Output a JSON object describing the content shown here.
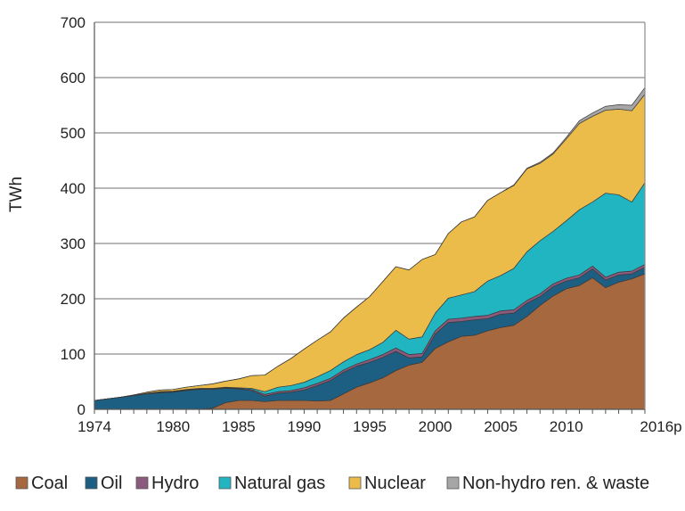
{
  "chart_data": {
    "type": "area",
    "stacked": true,
    "title": "",
    "xlabel": "",
    "ylabel": "TWh",
    "ylim": [
      0,
      700
    ],
    "yticks": [
      0,
      100,
      200,
      300,
      400,
      500,
      600,
      700
    ],
    "x_tick_labels": [
      "1974",
      "1980",
      "1985",
      "1990",
      "1995",
      "2000",
      "2005",
      "2010",
      "2016p"
    ],
    "grid": "horizontal",
    "legend_position": "bottom",
    "x": [
      1974,
      1975,
      1976,
      1977,
      1978,
      1979,
      1980,
      1981,
      1982,
      1983,
      1984,
      1985,
      1986,
      1987,
      1988,
      1989,
      1990,
      1991,
      1992,
      1993,
      1994,
      1995,
      1996,
      1997,
      1998,
      1999,
      2000,
      2001,
      2002,
      2003,
      2004,
      2005,
      2006,
      2007,
      2008,
      2009,
      2010,
      2011,
      2012,
      2013,
      2014,
      2015,
      2016
    ],
    "series": [
      {
        "name": "Coal",
        "color": "#a5683f",
        "values": [
          0,
          0,
          0,
          0,
          0,
          0,
          0,
          0,
          0,
          2,
          12,
          16,
          16,
          14,
          16,
          16,
          16,
          15,
          16,
          28,
          40,
          48,
          57,
          70,
          80,
          85,
          110,
          122,
          132,
          134,
          142,
          148,
          152,
          168,
          188,
          205,
          218,
          224,
          238,
          220,
          230,
          236,
          245
        ]
      },
      {
        "name": "Oil",
        "color": "#1d5f82",
        "values": [
          16,
          19,
          22,
          25,
          28,
          30,
          31,
          34,
          36,
          34,
          26,
          21,
          18,
          10,
          13,
          15,
          19,
          28,
          36,
          39,
          38,
          37,
          37,
          35,
          13,
          10,
          26,
          35,
          27,
          28,
          22,
          24,
          22,
          24,
          16,
          17,
          14,
          14,
          16,
          14,
          13,
          9,
          12
        ]
      },
      {
        "name": "Hydro",
        "color": "#8c5a7c",
        "values": [
          0,
          0,
          0,
          0,
          1,
          1,
          1,
          1,
          1,
          1,
          1,
          1,
          2,
          3,
          3,
          3,
          4,
          4,
          4,
          4,
          4,
          5,
          5,
          6,
          6,
          6,
          6,
          6,
          6,
          6,
          6,
          6,
          6,
          5,
          5,
          5,
          5,
          5,
          5,
          5,
          5,
          5,
          5
        ]
      },
      {
        "name": "Natural gas",
        "color": "#21b4c1",
        "values": [
          0,
          0,
          0,
          0,
          0,
          1,
          1,
          1,
          1,
          1,
          1,
          1,
          2,
          5,
          8,
          9,
          10,
          12,
          14,
          15,
          17,
          18,
          22,
          32,
          28,
          30,
          32,
          38,
          42,
          45,
          62,
          64,
          75,
          88,
          96,
          95,
          104,
          118,
          116,
          152,
          140,
          125,
          148
        ]
      },
      {
        "name": "Nuclear",
        "color": "#ecbc4a",
        "values": [
          0,
          0,
          0,
          1,
          2,
          3,
          3,
          4,
          5,
          8,
          11,
          16,
          23,
          30,
          38,
          49,
          60,
          66,
          70,
          79,
          86,
          96,
          110,
          115,
          125,
          140,
          106,
          117,
          132,
          135,
          146,
          150,
          150,
          150,
          140,
          140,
          148,
          156,
          155,
          150,
          155,
          165,
          160
        ]
      },
      {
        "name": "Non-hydro ren. & waste",
        "color": "#a6a6a6",
        "values": [
          0,
          0,
          0,
          0,
          0,
          0,
          0,
          0,
          0,
          0,
          0,
          0,
          0,
          0,
          0,
          0,
          0,
          0,
          0,
          0,
          0,
          0,
          0,
          0,
          0,
          0,
          0,
          0,
          0,
          0,
          0,
          0,
          1,
          1,
          2,
          2,
          3,
          5,
          6,
          7,
          8,
          10,
          12
        ]
      }
    ]
  }
}
